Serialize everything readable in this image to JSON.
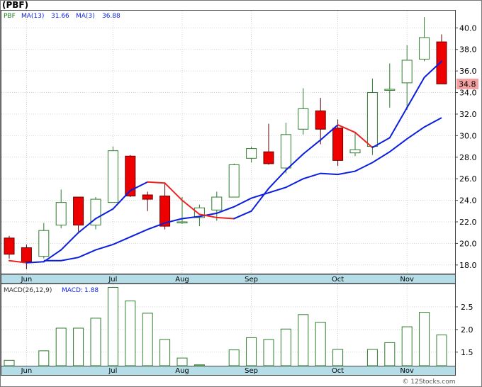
{
  "chart_title": "(PBF)",
  "watermark": "© 12Stocks.com",
  "colors": {
    "up": "#2e7d2e",
    "down": "#ee0000",
    "ma13": "#0a1ee0",
    "ma3_up": "#0a1ee0",
    "ma3_down": "#ee2222",
    "axis_band": "#b5dde8",
    "grid": "#bbbbbb",
    "macd_bar": "#2e7d2e",
    "last_price_bg": "#f4a0a0"
  },
  "chart_data": [
    {
      "type": "candlestick",
      "legend": [
        {
          "label": "PBF",
          "color": "#1a7a1a"
        },
        {
          "label": "MA(13)",
          "value": "31.66",
          "color": "#0a1ee0"
        },
        {
          "label": "MA(3)",
          "value": "36.88",
          "color": "#0a1ee0"
        }
      ],
      "ylim": [
        17.2,
        41.6
      ],
      "yticks": [
        "18.0",
        "20.0",
        "22.0",
        "24.0",
        "26.0",
        "28.0",
        "30.0",
        "32.0",
        "34.0",
        "36.0",
        "38.0",
        "40.0"
      ],
      "xlabels": [
        {
          "label": "Jun",
          "week": 1
        },
        {
          "label": "Jul",
          "week": 6
        },
        {
          "label": "Aug",
          "week": 10
        },
        {
          "label": "Sep",
          "week": 14
        },
        {
          "label": "Oct",
          "week": 19
        },
        {
          "label": "Nov",
          "week": 23
        }
      ],
      "last_price": "34.8",
      "candles": [
        {
          "o": 20.5,
          "h": 20.7,
          "l": 18.6,
          "c": 19.0
        },
        {
          "o": 19.6,
          "h": 19.9,
          "l": 17.6,
          "c": 18.3
        },
        {
          "o": 18.8,
          "h": 21.9,
          "l": 18.6,
          "c": 21.2
        },
        {
          "o": 21.7,
          "h": 25.0,
          "l": 21.4,
          "c": 23.8
        },
        {
          "o": 24.3,
          "h": 24.3,
          "l": 21.1,
          "c": 21.7
        },
        {
          "o": 21.7,
          "h": 24.3,
          "l": 21.3,
          "c": 24.1
        },
        {
          "o": 23.8,
          "h": 29.0,
          "l": 23.8,
          "c": 28.6
        },
        {
          "o": 28.1,
          "h": 28.2,
          "l": 24.3,
          "c": 24.4
        },
        {
          "o": 24.5,
          "h": 24.8,
          "l": 23.0,
          "c": 24.1
        },
        {
          "o": 24.4,
          "h": 25.6,
          "l": 21.3,
          "c": 21.6
        },
        {
          "o": 22.0,
          "h": 24.3,
          "l": 21.8,
          "c": 22.0
        },
        {
          "o": 22.4,
          "h": 23.6,
          "l": 21.6,
          "c": 23.3
        },
        {
          "o": 23.1,
          "h": 24.8,
          "l": 22.1,
          "c": 24.3
        },
        {
          "o": 24.3,
          "h": 27.4,
          "l": 24.3,
          "c": 27.3
        },
        {
          "o": 27.9,
          "h": 29.0,
          "l": 27.5,
          "c": 28.8
        },
        {
          "o": 28.5,
          "h": 31.1,
          "l": 27.3,
          "c": 27.4
        },
        {
          "o": 27.0,
          "h": 31.2,
          "l": 26.5,
          "c": 30.1
        },
        {
          "o": 30.6,
          "h": 34.4,
          "l": 30.1,
          "c": 32.5
        },
        {
          "o": 32.3,
          "h": 33.5,
          "l": 29.2,
          "c": 30.6
        },
        {
          "o": 30.7,
          "h": 31.5,
          "l": 27.2,
          "c": 27.7
        },
        {
          "o": 28.4,
          "h": 30.3,
          "l": 28.1,
          "c": 28.7
        },
        {
          "o": 29.0,
          "h": 35.3,
          "l": 28.2,
          "c": 34.0
        },
        {
          "o": 34.3,
          "h": 36.7,
          "l": 32.6,
          "c": 34.3
        },
        {
          "o": 34.9,
          "h": 38.4,
          "l": 32.4,
          "c": 37.0
        },
        {
          "o": 37.1,
          "h": 41.0,
          "l": 36.9,
          "c": 39.1
        },
        {
          "o": 38.7,
          "h": 39.4,
          "l": 34.8,
          "c": 34.8
        }
      ],
      "ma3": [
        18.4,
        18.2,
        18.3,
        19.4,
        21.0,
        22.3,
        23.2,
        24.9,
        25.7,
        25.6,
        24.0,
        22.7,
        22.4,
        22.3,
        23.0,
        25.1,
        26.8,
        28.3,
        29.6,
        31.0,
        30.3,
        28.9,
        29.8,
        32.6,
        35.4,
        36.9
      ],
      "ma13": [
        18.4,
        18.4,
        18.7,
        19.4,
        19.9,
        20.6,
        21.3,
        21.9,
        22.3,
        22.5,
        22.8,
        23.4,
        24.2,
        24.7,
        25.2,
        26.0,
        26.5,
        26.4,
        26.7,
        27.5,
        28.5,
        29.7,
        30.8,
        31.66
      ],
      "ma13_start_week": 2
    },
    {
      "type": "bar",
      "legend": [
        {
          "label": "MACD(26,12,9)",
          "color": "#333333"
        },
        {
          "label": "MACD:",
          "value": "1.88",
          "color": "#0a1ee0"
        }
      ],
      "ylim": [
        1.2,
        3.0
      ],
      "yticks": [
        "1.5",
        "2.0",
        "2.5"
      ],
      "xlabels": [
        {
          "label": "Jun",
          "week": 1
        },
        {
          "label": "Jul",
          "week": 6
        },
        {
          "label": "Aug",
          "week": 10
        },
        {
          "label": "Sep",
          "week": 14
        },
        {
          "label": "Oct",
          "week": 19
        },
        {
          "label": "Nov",
          "week": 23
        }
      ],
      "values": [
        1.32,
        null,
        1.53,
        2.03,
        2.03,
        2.25,
        2.93,
        2.63,
        2.36,
        1.78,
        1.37,
        1.22,
        null,
        1.55,
        1.82,
        1.78,
        2.01,
        2.33,
        2.16,
        1.56,
        null,
        1.56,
        1.71,
        2.06,
        2.38,
        1.88
      ]
    }
  ]
}
